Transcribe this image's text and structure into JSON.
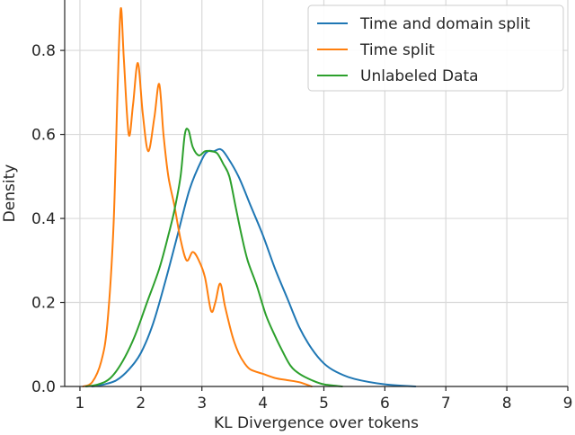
{
  "chart_data": {
    "type": "line",
    "xlabel": "KL Divergence over tokens",
    "ylabel": "Density",
    "xlim": [
      0.75,
      9.0
    ],
    "ylim": [
      0.0,
      0.92
    ],
    "xticks": [
      1,
      2,
      3,
      4,
      5,
      6,
      7,
      8,
      9
    ],
    "yticks": [
      0.0,
      0.2,
      0.4,
      0.6,
      0.8
    ],
    "xtick_labels": [
      "1",
      "2",
      "3",
      "4",
      "5",
      "6",
      "7",
      "8",
      "9"
    ],
    "ytick_labels": [
      "0.0",
      "0.2",
      "0.4",
      "0.6",
      "0.8"
    ],
    "grid": true,
    "legend_position": "top-right",
    "series": [
      {
        "name": "Time and domain split",
        "color": "#1f77b4",
        "x": [
          1.2,
          1.4,
          1.6,
          1.8,
          2.0,
          2.2,
          2.4,
          2.6,
          2.8,
          3.0,
          3.1,
          3.2,
          3.3,
          3.4,
          3.6,
          3.8,
          4.0,
          4.2,
          4.4,
          4.6,
          4.8,
          5.0,
          5.2,
          5.5,
          6.0,
          6.5
        ],
        "y": [
          0.0,
          0.005,
          0.015,
          0.04,
          0.08,
          0.15,
          0.25,
          0.36,
          0.47,
          0.54,
          0.56,
          0.56,
          0.565,
          0.55,
          0.5,
          0.43,
          0.36,
          0.28,
          0.21,
          0.14,
          0.09,
          0.055,
          0.035,
          0.018,
          0.005,
          0.0
        ]
      },
      {
        "name": "Time split",
        "color": "#ff7f0e",
        "x": [
          1.05,
          1.2,
          1.35,
          1.45,
          1.55,
          1.62,
          1.67,
          1.72,
          1.8,
          1.87,
          1.95,
          2.03,
          2.12,
          2.22,
          2.3,
          2.37,
          2.45,
          2.55,
          2.65,
          2.75,
          2.85,
          2.95,
          3.05,
          3.15,
          3.22,
          3.3,
          3.38,
          3.5,
          3.6,
          3.7,
          3.8,
          4.0,
          4.2,
          4.4,
          4.6,
          4.8
        ],
        "y": [
          0.0,
          0.01,
          0.06,
          0.15,
          0.38,
          0.72,
          0.9,
          0.78,
          0.6,
          0.67,
          0.77,
          0.65,
          0.56,
          0.64,
          0.72,
          0.6,
          0.5,
          0.43,
          0.35,
          0.3,
          0.32,
          0.3,
          0.26,
          0.18,
          0.2,
          0.245,
          0.19,
          0.12,
          0.08,
          0.055,
          0.04,
          0.03,
          0.02,
          0.015,
          0.01,
          0.0
        ]
      },
      {
        "name": "Unlabeled Data",
        "color": "#2ca02c",
        "x": [
          1.1,
          1.3,
          1.5,
          1.7,
          1.9,
          2.1,
          2.3,
          2.45,
          2.55,
          2.65,
          2.72,
          2.78,
          2.85,
          2.95,
          3.05,
          3.15,
          3.25,
          3.35,
          3.45,
          3.55,
          3.65,
          3.75,
          3.9,
          4.05,
          4.2,
          4.3,
          4.45,
          4.6,
          4.8,
          5.0,
          5.3
        ],
        "y": [
          0.0,
          0.005,
          0.02,
          0.06,
          0.12,
          0.2,
          0.28,
          0.36,
          0.42,
          0.5,
          0.6,
          0.61,
          0.57,
          0.55,
          0.56,
          0.56,
          0.555,
          0.53,
          0.5,
          0.43,
          0.36,
          0.3,
          0.24,
          0.17,
          0.12,
          0.09,
          0.05,
          0.03,
          0.015,
          0.005,
          0.0
        ]
      }
    ]
  }
}
